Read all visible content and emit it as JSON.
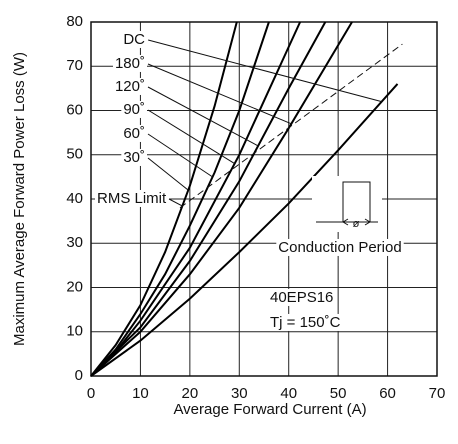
{
  "chart_data": {
    "type": "line",
    "x_label": "Average Forward Current (A)",
    "y_label": "Maximum Average Forward Power Loss (W)",
    "xlim": [
      0,
      70
    ],
    "xticks": [
      0,
      10,
      20,
      30,
      40,
      50,
      60,
      70
    ],
    "ylim": [
      0,
      80
    ],
    "yticks": [
      0,
      10,
      20,
      30,
      40,
      50,
      60,
      70,
      80
    ],
    "grid": true,
    "series": [
      {
        "name": "DC",
        "color": "#000000",
        "x": [
          0,
          10,
          20,
          30,
          40,
          50,
          62
        ],
        "values": [
          0,
          8,
          17.5,
          28,
          39,
          51,
          66
        ]
      },
      {
        "name": "180˚",
        "color": "#000000",
        "x": [
          0,
          10,
          20,
          30,
          40,
          52.8
        ],
        "values": [
          0,
          10,
          23,
          38,
          56,
          80
        ]
      },
      {
        "name": "120˚",
        "color": "#000000",
        "x": [
          0,
          10,
          20,
          30,
          40,
          47.4
        ],
        "values": [
          0,
          11,
          26,
          44,
          65,
          80
        ]
      },
      {
        "name": "90˚",
        "color": "#000000",
        "x": [
          0,
          5,
          10,
          20,
          30,
          42.3
        ],
        "values": [
          0,
          5.5,
          12.5,
          29,
          50,
          80
        ]
      },
      {
        "name": "60˚",
        "color": "#000000",
        "x": [
          0,
          5,
          10,
          15,
          20,
          25,
          30,
          36
        ],
        "values": [
          0,
          6,
          14,
          23,
          34,
          46,
          60,
          80
        ]
      },
      {
        "name": "30˚",
        "color": "#000000",
        "x": [
          0,
          5,
          10,
          15,
          20,
          25,
          29.5
        ],
        "values": [
          0,
          7,
          16,
          28,
          43,
          61,
          80
        ]
      }
    ],
    "rms_limit": {
      "label": "RMS Limit",
      "x": [
        18,
        63
      ],
      "values": [
        38,
        75
      ]
    },
    "inset": {
      "label": "Conduction Period",
      "symbol": "ø"
    },
    "annotations": [
      "40EPS16",
      "Tj = 150˚C"
    ]
  }
}
